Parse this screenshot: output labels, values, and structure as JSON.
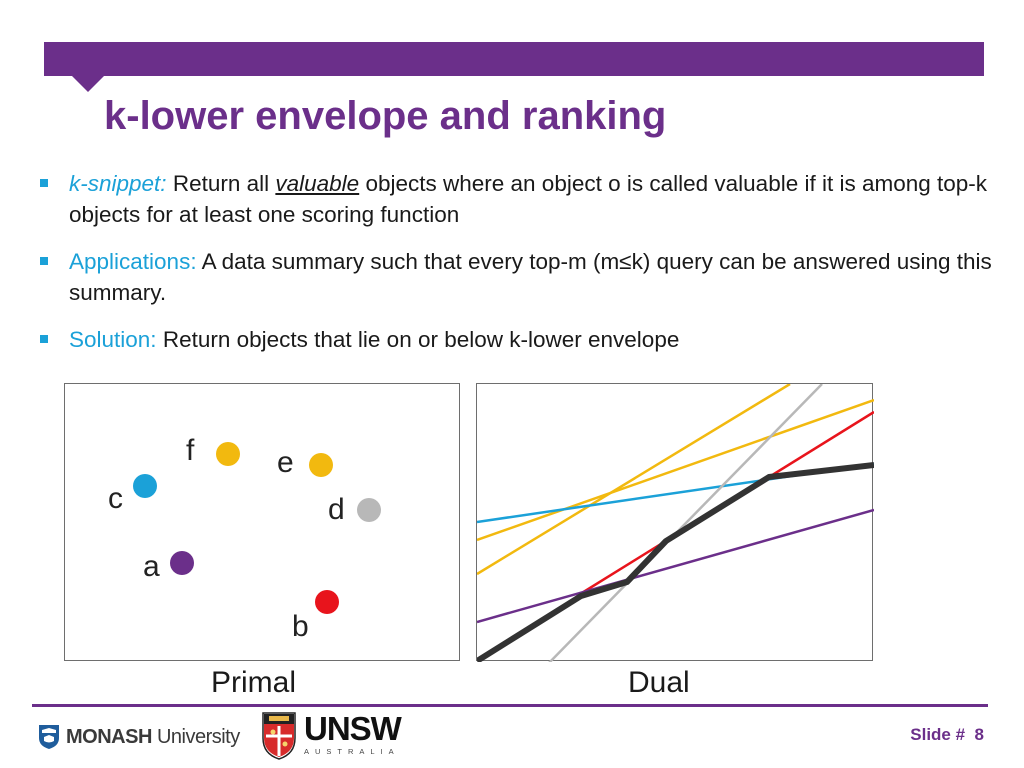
{
  "slide": {
    "title": "k-lower envelope and ranking",
    "brand_color": "#6b2f8a",
    "accent_color": "#1ba1d8"
  },
  "bullets": [
    {
      "term": "k-snippet:",
      "text_before": " Return all ",
      "emphasis": "valuable",
      "text_after": " objects where an object o is called valuable if it is among top-k objects for at least one scoring function"
    },
    {
      "term": "Applications:",
      "text": " A data summary such that every top-m (m≤k) query can be answered using this summary."
    },
    {
      "term": "Solution:",
      "text": " Return objects that lie on or below k-lower envelope"
    }
  ],
  "primal": {
    "caption": "Primal",
    "points": [
      {
        "label": "f",
        "color": "#f2b90f"
      },
      {
        "label": "e",
        "color": "#f2b90f"
      },
      {
        "label": "c",
        "color": "#1ba1d8"
      },
      {
        "label": "d",
        "color": "#b8b8b8"
      },
      {
        "label": "a",
        "color": "#6b2f8a"
      },
      {
        "label": "b",
        "color": "#e8141c"
      }
    ]
  },
  "dual": {
    "caption": "Dual",
    "line_colors": {
      "yellow": "#f2b90f",
      "cyan": "#1ba1d8",
      "purple": "#6b2f8a",
      "red": "#e8141c",
      "gray": "#b8b8b8",
      "envelope": "#333333"
    }
  },
  "footer": {
    "monash_bold": "MONASH",
    "monash_rest": " University",
    "unsw_name": "UNSW",
    "unsw_sub": "AUSTRALIA",
    "slide_label": "Slide #",
    "slide_number": "8"
  }
}
